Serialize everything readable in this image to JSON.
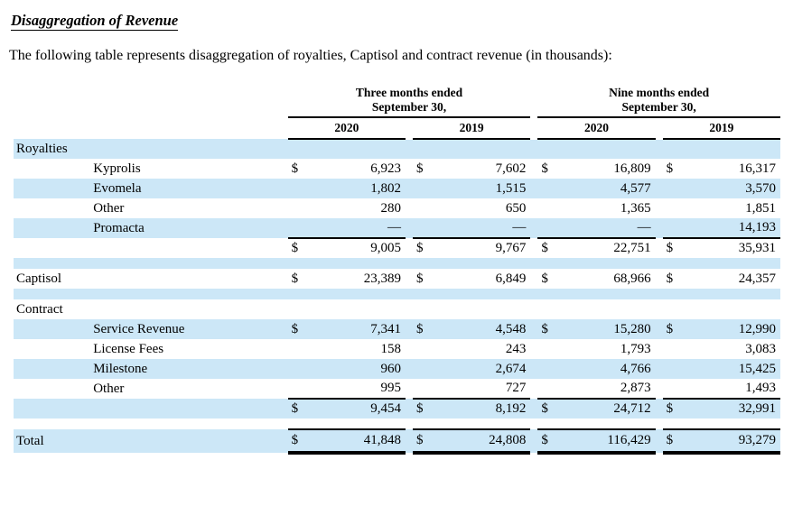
{
  "page": {
    "title": "Disaggregation of Revenue",
    "subtitle": "The following table represents disaggregation of royalties, Captisol and contract revenue (in thousands):"
  },
  "table": {
    "period_groups": [
      {
        "line1": "Three months ended",
        "line2": "September 30,"
      },
      {
        "line1": "Nine months ended",
        "line2": "September 30,"
      }
    ],
    "year_headers": [
      "2020",
      "2019",
      "2020",
      "2019"
    ],
    "rows": [
      {
        "type": "section",
        "label": "Royalties",
        "shade": true
      },
      {
        "type": "item",
        "label": "Kyprolis",
        "dollar": true,
        "shade": false,
        "values": [
          "6,923",
          "7,602",
          "16,809",
          "16,317"
        ]
      },
      {
        "type": "item",
        "label": "Evomela",
        "dollar": false,
        "shade": true,
        "values": [
          "1,802",
          "1,515",
          "4,577",
          "3,570"
        ]
      },
      {
        "type": "item",
        "label": "Other",
        "dollar": false,
        "shade": false,
        "values": [
          "280",
          "650",
          "1,365",
          "1,851"
        ]
      },
      {
        "type": "item",
        "label": "Promacta",
        "dollar": false,
        "shade": true,
        "values": [
          "—",
          "—",
          "—",
          "14,193"
        ]
      },
      {
        "type": "subtotal",
        "label": "",
        "dollar": true,
        "shade": false,
        "line_top": true,
        "values": [
          "9,005",
          "9,767",
          "22,751",
          "35,931"
        ]
      },
      {
        "type": "spacer",
        "shade": true
      },
      {
        "type": "section-values",
        "label": "Captisol",
        "dollar": true,
        "shade": false,
        "values": [
          "23,389",
          "6,849",
          "68,966",
          "24,357"
        ]
      },
      {
        "type": "spacer",
        "shade": true
      },
      {
        "type": "section",
        "label": "Contract",
        "shade": false
      },
      {
        "type": "item",
        "label": "Service Revenue",
        "dollar": true,
        "shade": true,
        "values": [
          "7,341",
          "4,548",
          "15,280",
          "12,990"
        ]
      },
      {
        "type": "item",
        "label": "License Fees",
        "dollar": false,
        "shade": false,
        "values": [
          "158",
          "243",
          "1,793",
          "3,083"
        ]
      },
      {
        "type": "item",
        "label": "Milestone",
        "dollar": false,
        "shade": true,
        "values": [
          "960",
          "2,674",
          "4,766",
          "15,425"
        ]
      },
      {
        "type": "item",
        "label": "Other",
        "dollar": false,
        "shade": false,
        "values": [
          "995",
          "727",
          "2,873",
          "1,493"
        ]
      },
      {
        "type": "subtotal",
        "label": "",
        "dollar": true,
        "shade": true,
        "line_top": true,
        "values": [
          "9,454",
          "8,192",
          "24,712",
          "32,991"
        ]
      },
      {
        "type": "spacer",
        "shade": false
      },
      {
        "type": "total",
        "label": "Total",
        "dollar": true,
        "shade": true,
        "line_top": true,
        "line_bottom": true,
        "values": [
          "41,848",
          "24,808",
          "116,429",
          "93,279"
        ]
      }
    ],
    "colors": {
      "row_shade": "#cce7f7",
      "text": "#000000",
      "rule": "#000000"
    }
  }
}
